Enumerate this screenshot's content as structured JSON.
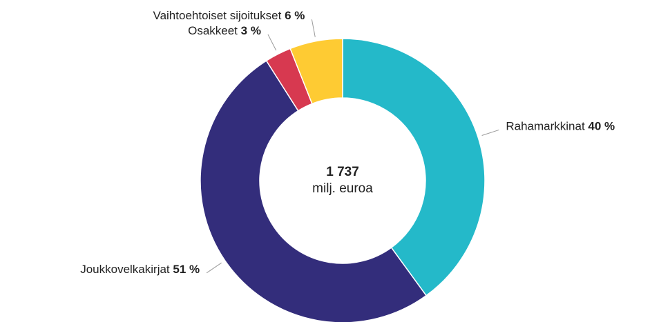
{
  "chart_data": {
    "type": "donut",
    "categories": [
      "Rahamarkkinat",
      "Joukkovelkakirjat",
      "Osakkeet",
      "Vaihtoehtoiset sijoitukset"
    ],
    "values": [
      40,
      51,
      3,
      6
    ],
    "value_labels": [
      "40 %",
      "51 %",
      "3 %",
      "6 %"
    ],
    "colors": [
      "#24b9c9",
      "#332d7b",
      "#d73950",
      "#fecb33"
    ],
    "center_title": "1 737",
    "center_subtitle": "milj. euroa"
  }
}
